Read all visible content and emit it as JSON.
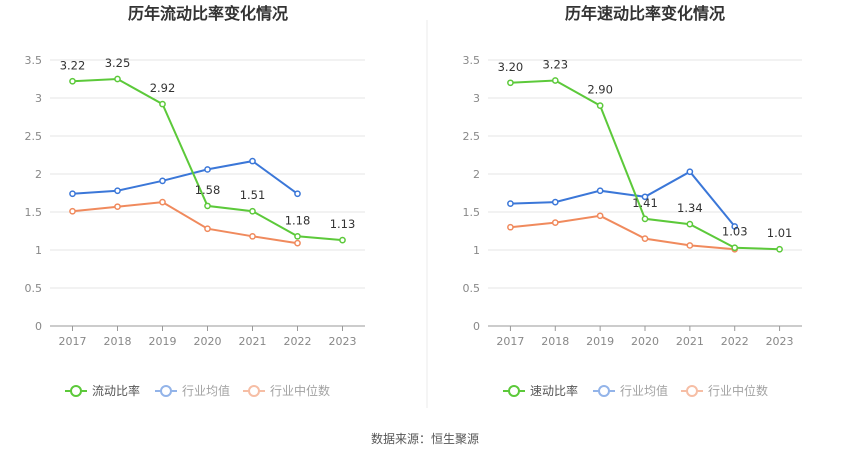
{
  "source_label": "数据来源：恒生聚源",
  "colors": {
    "main": "#5cc93a",
    "avg": "#3b77d8",
    "median": "#f08a5d",
    "grid": "#e6e6e6",
    "axis": "#999999",
    "divider": "#ebebeb"
  },
  "chart_data": [
    {
      "type": "line",
      "title": "历年流动比率变化情况",
      "x": [
        "2017",
        "2018",
        "2019",
        "2020",
        "2021",
        "2022",
        "2023"
      ],
      "ylim": [
        0,
        3.5
      ],
      "yticks": [
        "0",
        "0.5",
        "1",
        "1.5",
        "2",
        "2.5",
        "3",
        "3.5"
      ],
      "grid": true,
      "legend_position": "bottom",
      "series": [
        {
          "name": "流动比率",
          "color": "#5cc93a",
          "values": [
            3.22,
            3.25,
            2.92,
            1.58,
            1.51,
            1.18,
            1.13
          ],
          "labels": [
            "3.22",
            "3.25",
            "2.92",
            "1.58",
            "1.51",
            "1.18",
            "1.13"
          ]
        },
        {
          "name": "行业均值",
          "color": "#3b77d8",
          "values": [
            1.74,
            1.78,
            1.91,
            2.06,
            2.17,
            1.74,
            null
          ]
        },
        {
          "name": "行业中位数",
          "color": "#f08a5d",
          "values": [
            1.51,
            1.57,
            1.63,
            1.28,
            1.18,
            1.09,
            null
          ]
        }
      ]
    },
    {
      "type": "line",
      "title": "历年速动比率变化情况",
      "x": [
        "2017",
        "2018",
        "2019",
        "2020",
        "2021",
        "2022",
        "2023"
      ],
      "ylim": [
        0,
        3.5
      ],
      "yticks": [
        "0",
        "0.5",
        "1",
        "1.5",
        "2",
        "2.5",
        "3",
        "3.5"
      ],
      "grid": true,
      "legend_position": "bottom",
      "series": [
        {
          "name": "速动比率",
          "color": "#5cc93a",
          "values": [
            3.2,
            3.23,
            2.9,
            1.41,
            1.34,
            1.03,
            1.01
          ],
          "labels": [
            "3.20",
            "3.23",
            "2.90",
            "1.41",
            "1.34",
            "1.03",
            "1.01"
          ]
        },
        {
          "name": "行业均值",
          "color": "#3b77d8",
          "values": [
            1.61,
            1.63,
            1.78,
            1.7,
            2.03,
            1.31,
            null
          ]
        },
        {
          "name": "行业中位数",
          "color": "#f08a5d",
          "values": [
            1.3,
            1.36,
            1.45,
            1.15,
            1.06,
            1.01,
            null
          ]
        }
      ]
    }
  ]
}
